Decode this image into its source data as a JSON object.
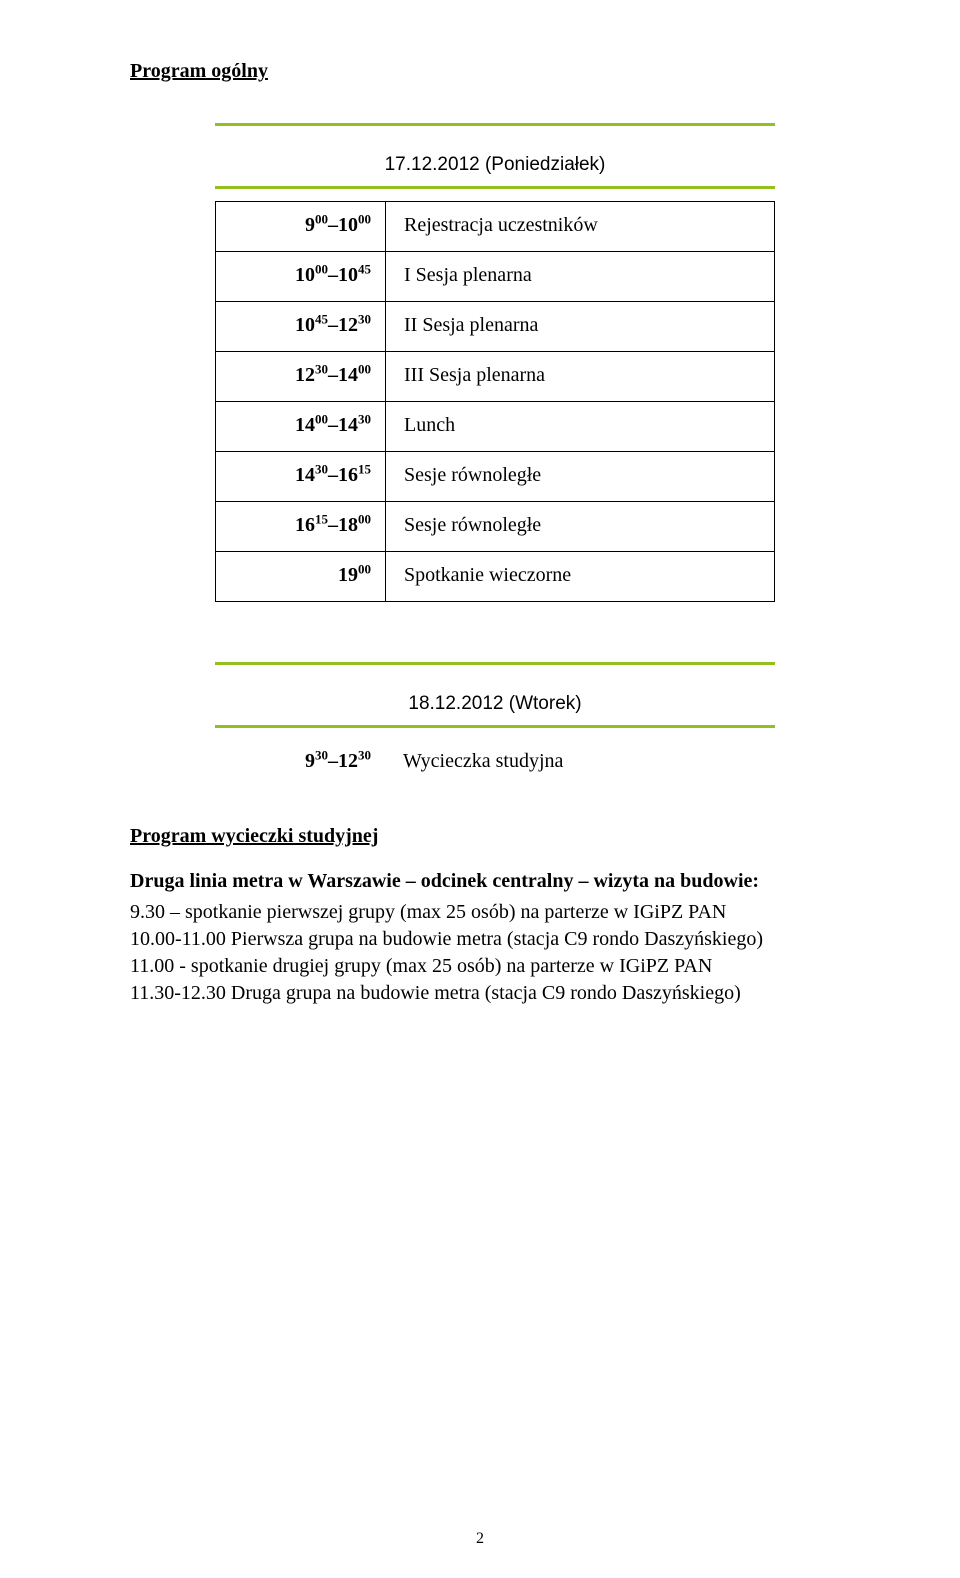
{
  "colors": {
    "green_rule": "#93c01f",
    "text": "#000000",
    "background": "#ffffff",
    "table_border": "#000000"
  },
  "typography": {
    "body_family": "Times New Roman",
    "heading_family": "Verdana",
    "body_size_pt": 15,
    "heading_size_pt": 14
  },
  "header": {
    "program_title": "Program ogólny"
  },
  "day1": {
    "date_heading": "17.12.2012 (Poniedziałek)",
    "rows": [
      {
        "time_html": "9<sup>00</sup>–10<sup>00</sup>",
        "desc": "Rejestracja uczestników"
      },
      {
        "time_html": "10<sup>00</sup>–10<sup>45</sup>",
        "desc": "I Sesja plenarna"
      },
      {
        "time_html": "10<sup>45</sup>–12<sup>30</sup>",
        "desc": "II Sesja plenarna"
      },
      {
        "time_html": "12<sup>30</sup>–14<sup>00</sup>",
        "desc": "III Sesja plenarna"
      },
      {
        "time_html": "14<sup>00</sup>–14<sup>30</sup>",
        "desc": "Lunch"
      },
      {
        "time_html": "14<sup>30</sup>–16<sup>15</sup>",
        "desc": "Sesje równoległe"
      },
      {
        "time_html": "16<sup>15</sup>–18<sup>00</sup>",
        "desc": "Sesje równoległe"
      },
      {
        "time_html": "19<sup>00</sup>",
        "desc": "Spotkanie wieczorne"
      }
    ]
  },
  "day2": {
    "date_heading": "18.12.2012 (Wtorek)",
    "row": {
      "time_html": "9<sup>30</sup>–12<sup>30</sup>",
      "desc": "Wycieczka studyjna"
    }
  },
  "trip": {
    "heading": "Program wycieczki studyjnej",
    "bold_line": "Druga linia metra w Warszawie – odcinek centralny – wizyta na budowie:",
    "lines": [
      "9.30 – spotkanie pierwszej grupy (max 25 osób) na parterze w IGiPZ PAN",
      "10.00-11.00 Pierwsza grupa na budowie metra (stacja C9 rondo Daszyńskiego)",
      "11.00 - spotkanie drugiej grupy (max 25 osób) na parterze w IGiPZ PAN",
      "11.30-12.30 Druga grupa na budowie metra (stacja C9 rondo Daszyńskiego)"
    ]
  },
  "page_number": "2"
}
